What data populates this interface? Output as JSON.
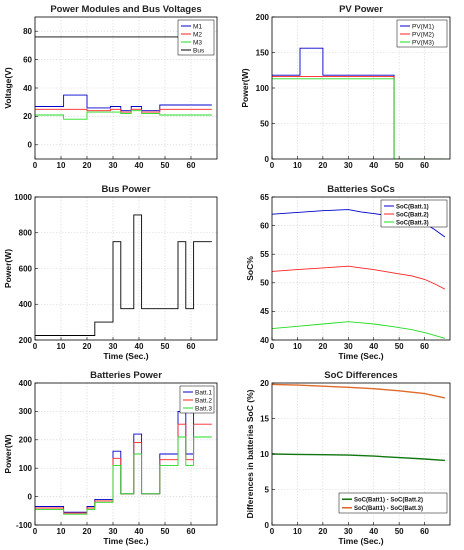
{
  "chart_data": [
    {
      "type": "line",
      "title": "Power Modules and Bus Voltages",
      "xlabel": "",
      "ylabel": "Voltage(V)",
      "xlim": [
        0,
        70
      ],
      "ylim": [
        -10,
        90
      ],
      "xticks": [
        0,
        10,
        20,
        30,
        40,
        50,
        60
      ],
      "yticks": [
        0,
        20,
        40,
        60,
        80
      ],
      "grid": true,
      "legend": "top-right",
      "series": [
        {
          "name": "M1",
          "color": "#0000cc",
          "x": [
            0,
            11,
            11,
            20,
            20,
            29,
            29,
            33,
            33,
            37,
            37,
            41,
            41,
            48,
            48,
            68
          ],
          "y": [
            27,
            27,
            35,
            35,
            26,
            26,
            27,
            27,
            24,
            24,
            27,
            27,
            24,
            24,
            28,
            28
          ]
        },
        {
          "name": "M2",
          "color": "#ff2222",
          "x": [
            0,
            11,
            11,
            20,
            20,
            29,
            29,
            33,
            33,
            37,
            37,
            41,
            41,
            48,
            48,
            68
          ],
          "y": [
            25,
            25,
            25,
            25,
            24,
            24,
            25,
            25,
            23,
            23,
            25,
            25,
            23,
            23,
            25,
            25
          ]
        },
        {
          "name": "M3",
          "color": "#22dd22",
          "x": [
            0,
            11,
            11,
            20,
            20,
            29,
            29,
            33,
            33,
            37,
            37,
            41,
            41,
            48,
            48,
            68
          ],
          "y": [
            21,
            21,
            18,
            18,
            23,
            23,
            23,
            23,
            22,
            22,
            24,
            24,
            22,
            22,
            21,
            21
          ]
        },
        {
          "name": "Bus",
          "color": "#000000",
          "x": [
            0,
            68
          ],
          "y": [
            76,
            76
          ]
        }
      ]
    },
    {
      "type": "line",
      "title": "PV Power",
      "xlabel": "",
      "ylabel": "Power(W)",
      "xlim": [
        0,
        70
      ],
      "ylim": [
        0,
        200
      ],
      "xticks": [
        0,
        10,
        20,
        30,
        40,
        50,
        60
      ],
      "yticks": [
        0,
        50,
        100,
        150,
        200
      ],
      "grid": true,
      "legend": "top-right",
      "series": [
        {
          "name": "PV(M1)",
          "color": "#0000cc",
          "x": [
            0,
            11,
            11,
            20,
            20,
            48,
            48,
            68
          ],
          "y": [
            118,
            118,
            156,
            156,
            118,
            118,
            0,
            0
          ]
        },
        {
          "name": "PV(M2)",
          "color": "#ff2222",
          "x": [
            0,
            11,
            11,
            20,
            20,
            48,
            48,
            68
          ],
          "y": [
            116,
            116,
            116,
            116,
            116,
            116,
            0,
            0
          ]
        },
        {
          "name": "PV(M3)",
          "color": "#22dd22",
          "x": [
            0,
            11,
            11,
            20,
            20,
            48,
            48,
            68
          ],
          "y": [
            113,
            113,
            113,
            113,
            113,
            113,
            0,
            0
          ]
        }
      ]
    },
    {
      "type": "line",
      "title": "Bus Power",
      "xlabel": "Time (Sec.)",
      "ylabel": "Power(W)",
      "xlim": [
        0,
        70
      ],
      "ylim": [
        200,
        1000
      ],
      "xticks": [
        0,
        10,
        20,
        30,
        40,
        50,
        60
      ],
      "yticks": [
        200,
        400,
        600,
        800,
        1000
      ],
      "grid": true,
      "legend": "none",
      "series": [
        {
          "name": "",
          "color": "#000000",
          "x": [
            0,
            23,
            23,
            30,
            30,
            33,
            33,
            38,
            38,
            41,
            41,
            55,
            55,
            58,
            58,
            61,
            61,
            68
          ],
          "y": [
            225,
            225,
            300,
            300,
            750,
            750,
            375,
            375,
            900,
            900,
            375,
            375,
            750,
            750,
            375,
            375,
            750,
            750
          ]
        }
      ]
    },
    {
      "type": "line",
      "title": "Batteries SoCs",
      "xlabel": "Time (Sec.)",
      "ylabel": "SoC%",
      "xlim": [
        0,
        70
      ],
      "ylim": [
        40,
        65
      ],
      "xticks": [
        0,
        10,
        20,
        30,
        40,
        50,
        60
      ],
      "yticks": [
        40,
        45,
        50,
        55,
        60,
        65
      ],
      "grid": true,
      "legend": "top-right",
      "series": [
        {
          "name": "SoC(Batt.1)",
          "color": "#0000cc",
          "x": [
            0,
            10,
            20,
            30,
            35,
            40,
            48,
            55,
            60,
            64,
            68
          ],
          "y": [
            62,
            62.3,
            62.6,
            62.8,
            62.4,
            62.1,
            61.6,
            61.2,
            60.4,
            59.3,
            58
          ]
        },
        {
          "name": "SoC(Batt.2)",
          "color": "#ff2222",
          "x": [
            0,
            10,
            20,
            30,
            35,
            40,
            48,
            55,
            60,
            64,
            68
          ],
          "y": [
            52,
            52.3,
            52.6,
            52.9,
            52.6,
            52.3,
            51.7,
            51.2,
            50.6,
            49.8,
            48.9
          ]
        },
        {
          "name": "SoC(Batt.3)",
          "color": "#22dd22",
          "x": [
            0,
            10,
            20,
            30,
            35,
            40,
            48,
            55,
            60,
            64,
            68
          ],
          "y": [
            42,
            42.4,
            42.8,
            43.2,
            43,
            42.8,
            42.3,
            41.8,
            41.3,
            40.8,
            40.3
          ]
        }
      ]
    },
    {
      "type": "line",
      "title": "Batteries Power",
      "xlabel": "Time (Sec.)",
      "ylabel": "Power(W)",
      "xlim": [
        0,
        70
      ],
      "ylim": [
        -100,
        400
      ],
      "xticks": [
        0,
        10,
        20,
        30,
        40,
        50,
        60
      ],
      "yticks": [
        -100,
        0,
        100,
        200,
        300,
        400
      ],
      "grid": true,
      "legend": "top-right",
      "series": [
        {
          "name": "Batt.1",
          "color": "#0000cc",
          "x": [
            0,
            11,
            11,
            20,
            20,
            23,
            23,
            30,
            30,
            33,
            33,
            38,
            38,
            41,
            41,
            48,
            48,
            55,
            55,
            58,
            58,
            61,
            61,
            68
          ],
          "y": [
            -35,
            -35,
            -55,
            -55,
            -35,
            -35,
            -10,
            -10,
            160,
            160,
            10,
            10,
            220,
            220,
            10,
            10,
            150,
            150,
            300,
            300,
            150,
            150,
            300,
            300
          ]
        },
        {
          "name": "Batt.2",
          "color": "#ff2222",
          "x": [
            0,
            11,
            11,
            20,
            20,
            23,
            23,
            30,
            30,
            33,
            33,
            38,
            38,
            41,
            41,
            48,
            48,
            55,
            55,
            58,
            58,
            61,
            61,
            68
          ],
          "y": [
            -40,
            -40,
            -58,
            -58,
            -40,
            -40,
            -15,
            -15,
            135,
            135,
            10,
            10,
            190,
            190,
            10,
            10,
            130,
            130,
            255,
            255,
            130,
            130,
            255,
            255
          ]
        },
        {
          "name": "Batt.3",
          "color": "#22dd22",
          "x": [
            0,
            11,
            11,
            20,
            20,
            23,
            23,
            30,
            30,
            33,
            33,
            38,
            38,
            41,
            41,
            48,
            48,
            55,
            55,
            58,
            58,
            61,
            61,
            68
          ],
          "y": [
            -45,
            -45,
            -62,
            -62,
            -45,
            -45,
            -20,
            -20,
            110,
            110,
            10,
            10,
            150,
            150,
            10,
            10,
            110,
            110,
            210,
            210,
            110,
            110,
            210,
            210
          ]
        }
      ]
    },
    {
      "type": "line",
      "title": "SoC Differences",
      "xlabel": "Time (Sec.)",
      "ylabel": "Differences in batteries SoC (%)",
      "xlim": [
        0,
        70
      ],
      "ylim": [
        0,
        20
      ],
      "xticks": [
        0,
        10,
        20,
        30,
        40,
        50,
        60
      ],
      "yticks": [
        0,
        5,
        10,
        15,
        20
      ],
      "grid": true,
      "legend": "bottom-right",
      "series": [
        {
          "name": "SoC(Batt1) - SoC(Batt.2)",
          "color": "#117711",
          "x": [
            0,
            10,
            20,
            30,
            40,
            50,
            60,
            68
          ],
          "y": [
            10,
            9.95,
            9.9,
            9.85,
            9.7,
            9.5,
            9.3,
            9.1
          ]
        },
        {
          "name": "SoC(Batt1) - SoC(Batt.3)",
          "color": "#e06a2a",
          "x": [
            0,
            10,
            20,
            30,
            40,
            50,
            60,
            68
          ],
          "y": [
            19.8,
            19.7,
            19.55,
            19.4,
            19.2,
            18.9,
            18.5,
            17.9
          ]
        }
      ]
    }
  ]
}
